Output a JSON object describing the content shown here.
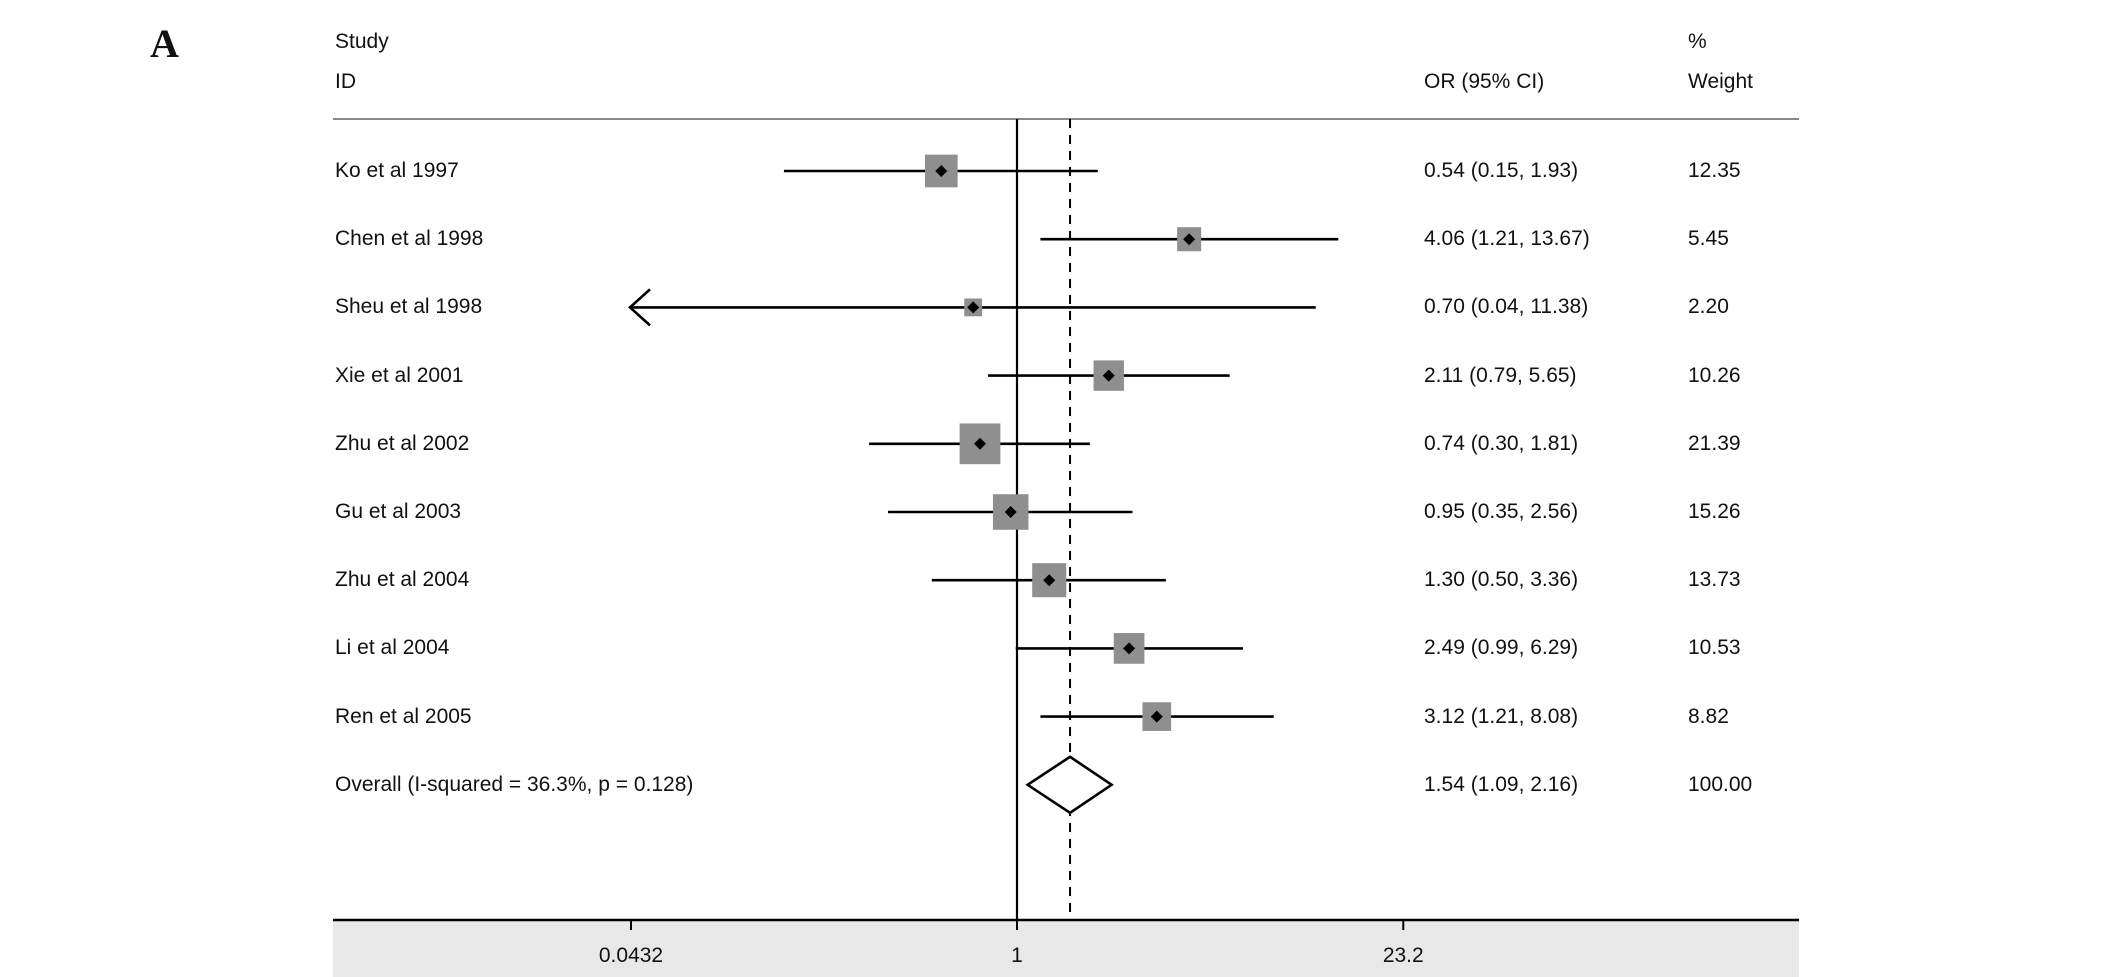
{
  "panel_label": "A",
  "headers": {
    "study_line1": "Study",
    "study_line2": "ID",
    "or_header": "OR (95% CI)",
    "weight_line1": "%",
    "weight_line2": "Weight"
  },
  "chart_data": {
    "type": "forest",
    "x_scale": "log",
    "x_ticks": [
      0.0432,
      1,
      23.2
    ],
    "x_tick_labels": [
      "0.0432",
      "1",
      "23.2"
    ],
    "null_line": 1,
    "pooled_line": 1.54,
    "rows": [
      {
        "label": "Ko et al 1997",
        "or": 0.54,
        "lo": 0.15,
        "hi": 1.93,
        "ci_text": "0.54 (0.15, 1.93)",
        "weight": "12.35",
        "weight_val": 12.35
      },
      {
        "label": "Chen et al 1998",
        "or": 4.06,
        "lo": 1.21,
        "hi": 13.67,
        "ci_text": "4.06 (1.21, 13.67)",
        "weight": "5.45",
        "weight_val": 5.45
      },
      {
        "label": "Sheu et al 1998",
        "or": 0.7,
        "lo": 0.04,
        "hi": 11.38,
        "ci_text": "0.70 (0.04, 11.38)",
        "weight": "2.20",
        "weight_val": 2.2,
        "left_arrow": true
      },
      {
        "label": "Xie et al 2001",
        "or": 2.11,
        "lo": 0.79,
        "hi": 5.65,
        "ci_text": "2.11 (0.79, 5.65)",
        "weight": "10.26",
        "weight_val": 10.26
      },
      {
        "label": "Zhu et al 2002",
        "or": 0.74,
        "lo": 0.3,
        "hi": 1.81,
        "ci_text": "0.74 (0.30, 1.81)",
        "weight": "21.39",
        "weight_val": 21.39
      },
      {
        "label": "Gu et al 2003",
        "or": 0.95,
        "lo": 0.35,
        "hi": 2.56,
        "ci_text": "0.95 (0.35, 2.56)",
        "weight": "15.26",
        "weight_val": 15.26
      },
      {
        "label": "Zhu et al 2004",
        "or": 1.3,
        "lo": 0.5,
        "hi": 3.36,
        "ci_text": "1.30 (0.50, 3.36)",
        "weight": "13.73",
        "weight_val": 13.73
      },
      {
        "label": "Li et al 2004",
        "or": 2.49,
        "lo": 0.99,
        "hi": 6.29,
        "ci_text": "2.49 (0.99, 6.29)",
        "weight": "10.53",
        "weight_val": 10.53
      },
      {
        "label": "Ren et al 2005",
        "or": 3.12,
        "lo": 1.21,
        "hi": 8.08,
        "ci_text": "3.12 (1.21, 8.08)",
        "weight": "8.82",
        "weight_val": 8.82
      }
    ],
    "overall": {
      "label": "Overall  (I-squared = 36.3%, p = 0.128)",
      "or": 1.54,
      "lo": 1.09,
      "hi": 2.16,
      "ci_text": "1.54 (1.09, 2.16)",
      "weight": "100.00"
    },
    "colors": {
      "box": "#8f8f8f",
      "line": "#000000",
      "axis_band": "#e8e8e8",
      "rule": "#888888"
    }
  }
}
